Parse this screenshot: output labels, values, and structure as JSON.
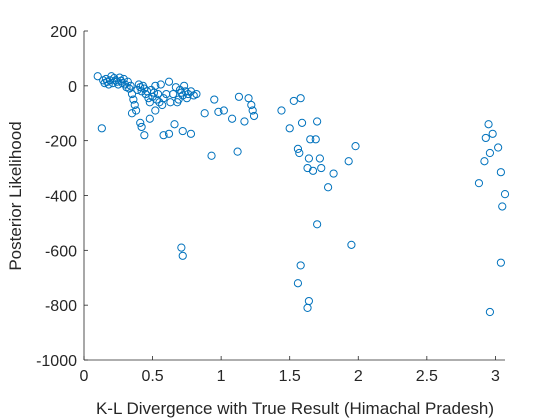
{
  "chart_data": {
    "type": "scatter",
    "title": "",
    "xlabel": "K-L Divergence with True Result (Himachal Pradesh)",
    "ylabel": "Posterior Likelihood",
    "xlim": [
      0,
      3.07
    ],
    "ylim": [
      -1000,
      200
    ],
    "xticks": [
      0,
      0.5,
      1,
      1.5,
      2,
      2.5,
      3
    ],
    "xtick_labels": [
      "0",
      "0.5",
      "1",
      "1.5",
      "2",
      "2.5",
      "3"
    ],
    "yticks": [
      -1000,
      -800,
      -600,
      -400,
      -200,
      0,
      200
    ],
    "ytick_labels": [
      "-1000",
      "-800",
      "-600",
      "-400",
      "-200",
      "0",
      "200"
    ],
    "grid": false,
    "marker": "open-circle",
    "color": "#0072bd",
    "points": [
      [
        0.1,
        35
      ],
      [
        0.14,
        20
      ],
      [
        0.15,
        10
      ],
      [
        0.16,
        25
      ],
      [
        0.17,
        15
      ],
      [
        0.18,
        5
      ],
      [
        0.19,
        20
      ],
      [
        0.2,
        35
      ],
      [
        0.21,
        10
      ],
      [
        0.22,
        28
      ],
      [
        0.23,
        20
      ],
      [
        0.24,
        15
      ],
      [
        0.25,
        5
      ],
      [
        0.26,
        30
      ],
      [
        0.27,
        18
      ],
      [
        0.28,
        10
      ],
      [
        0.29,
        25
      ],
      [
        0.3,
        5
      ],
      [
        0.31,
        -5
      ],
      [
        0.32,
        15
      ],
      [
        0.33,
        -10
      ],
      [
        0.34,
        0
      ],
      [
        0.35,
        -30
      ],
      [
        0.36,
        -50
      ],
      [
        0.37,
        -70
      ],
      [
        0.38,
        -90
      ],
      [
        0.39,
        -15
      ],
      [
        0.4,
        5
      ],
      [
        0.41,
        -5
      ],
      [
        0.42,
        -20
      ],
      [
        0.43,
        0
      ],
      [
        0.44,
        -10
      ],
      [
        0.45,
        -30
      ],
      [
        0.46,
        -20
      ],
      [
        0.47,
        -45
      ],
      [
        0.48,
        -60
      ],
      [
        0.49,
        -15
      ],
      [
        0.5,
        -40
      ],
      [
        0.51,
        -25
      ],
      [
        0.52,
        0
      ],
      [
        0.53,
        -50
      ],
      [
        0.54,
        -30
      ],
      [
        0.55,
        -60
      ],
      [
        0.56,
        5
      ],
      [
        0.57,
        -70
      ],
      [
        0.58,
        -45
      ],
      [
        0.6,
        -30
      ],
      [
        0.62,
        15
      ],
      [
        0.63,
        -60
      ],
      [
        0.65,
        -30
      ],
      [
        0.67,
        -5
      ],
      [
        0.68,
        -60
      ],
      [
        0.69,
        -50
      ],
      [
        0.7,
        -15
      ],
      [
        0.71,
        -25
      ],
      [
        0.72,
        -35
      ],
      [
        0.73,
        0
      ],
      [
        0.74,
        -20
      ],
      [
        0.75,
        -45
      ],
      [
        0.76,
        -30
      ],
      [
        0.78,
        -20
      ],
      [
        0.8,
        -35
      ],
      [
        0.82,
        -30
      ],
      [
        0.13,
        -155
      ],
      [
        0.35,
        -100
      ],
      [
        0.42,
        -150
      ],
      [
        0.41,
        -135
      ],
      [
        0.44,
        -180
      ],
      [
        0.48,
        -120
      ],
      [
        0.52,
        -90
      ],
      [
        0.58,
        -180
      ],
      [
        0.62,
        -175
      ],
      [
        0.66,
        -140
      ],
      [
        0.72,
        -165
      ],
      [
        0.78,
        -175
      ],
      [
        0.88,
        -100
      ],
      [
        0.93,
        -255
      ],
      [
        0.95,
        -50
      ],
      [
        0.98,
        -95
      ],
      [
        1.02,
        -90
      ],
      [
        1.08,
        -120
      ],
      [
        1.12,
        -240
      ],
      [
        1.13,
        -40
      ],
      [
        1.17,
        -130
      ],
      [
        1.2,
        -45
      ],
      [
        1.22,
        -70
      ],
      [
        1.23,
        -90
      ],
      [
        1.24,
        -110
      ],
      [
        1.44,
        -90
      ],
      [
        1.5,
        -155
      ],
      [
        1.53,
        -55
      ],
      [
        1.56,
        -230
      ],
      [
        1.57,
        -245
      ],
      [
        1.58,
        -45
      ],
      [
        1.59,
        -135
      ],
      [
        1.63,
        -300
      ],
      [
        1.64,
        -265
      ],
      [
        1.65,
        -195
      ],
      [
        1.67,
        -310
      ],
      [
        1.69,
        -195
      ],
      [
        1.7,
        -130
      ],
      [
        1.72,
        -265
      ],
      [
        1.73,
        -300
      ],
      [
        1.78,
        -370
      ],
      [
        1.82,
        -320
      ],
      [
        1.93,
        -275
      ],
      [
        1.98,
        -220
      ],
      [
        0.71,
        -590
      ],
      [
        0.72,
        -620
      ],
      [
        1.58,
        -655
      ],
      [
        1.56,
        -720
      ],
      [
        1.64,
        -785
      ],
      [
        1.63,
        -810
      ],
      [
        1.7,
        -505
      ],
      [
        1.95,
        -580
      ],
      [
        2.88,
        -355
      ],
      [
        2.92,
        -275
      ],
      [
        2.93,
        -190
      ],
      [
        2.95,
        -140
      ],
      [
        2.96,
        -245
      ],
      [
        2.98,
        -175
      ],
      [
        3.02,
        -225
      ],
      [
        3.04,
        -315
      ],
      [
        3.05,
        -440
      ],
      [
        3.07,
        -395
      ],
      [
        3.04,
        -645
      ],
      [
        2.96,
        -825
      ]
    ]
  }
}
